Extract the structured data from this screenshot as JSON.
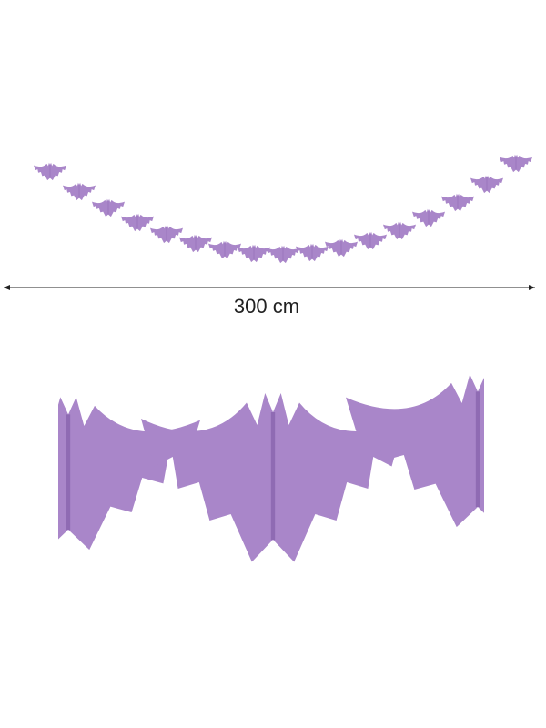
{
  "dimension_label": "300 cm"
}
